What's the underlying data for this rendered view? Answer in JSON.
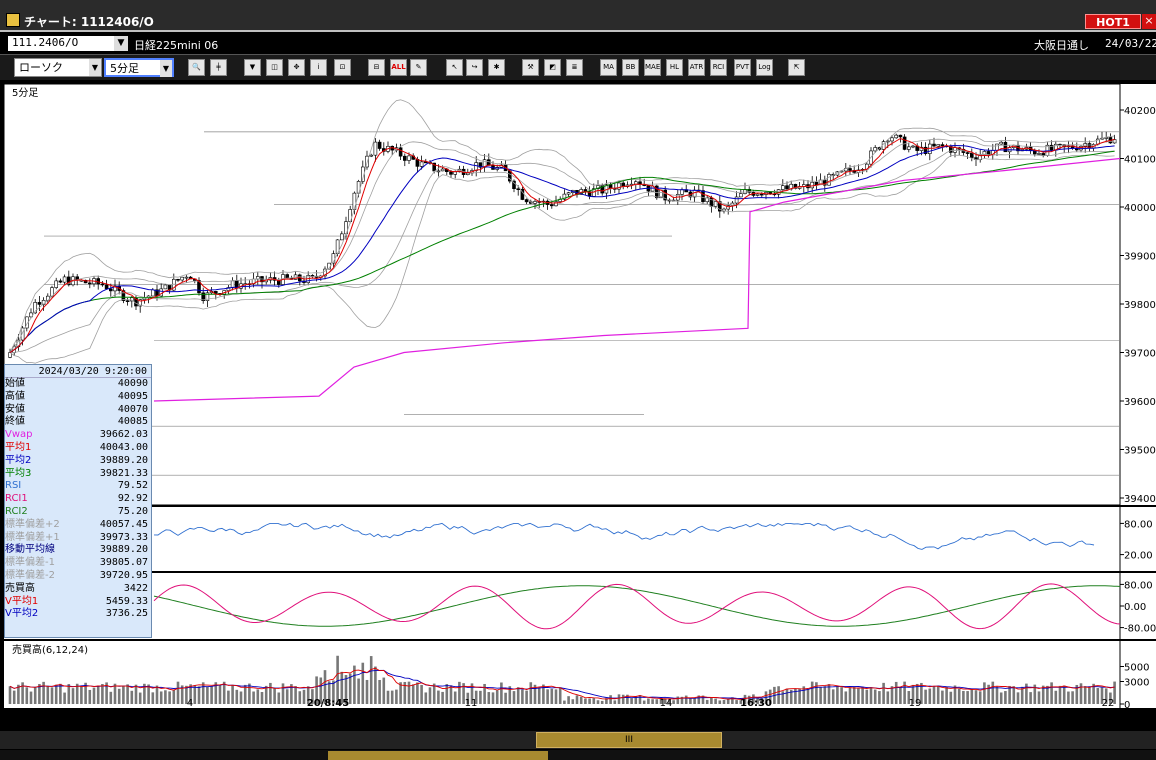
{
  "window": {
    "title": "チャート: 1112406/O",
    "hot_label": "HOT1",
    "close_glyph": "×"
  },
  "symbol_bar": {
    "symbol": "111.2406/O",
    "name": "日経225mini 06",
    "exchange": "大阪日通し",
    "date": "24/03/22"
  },
  "toolbar": {
    "chart_type": "ローソク",
    "interval": "5分足",
    "buttons": [
      "search-icon",
      "cursor-icon",
      "zoom-in-icon",
      "zoom-out-icon",
      "scroll-icon",
      "info-icon",
      "candle-icon",
      "candle2-icon",
      "ALL",
      "pen-icon",
      "arrow-icon",
      "move-icon",
      "settings-icon",
      "wrench-icon",
      "color-icon",
      "bar-icon",
      "MA",
      "BB",
      "MAE",
      "HL",
      "ATR",
      "RCI",
      "PVT",
      "Log",
      "export-icon"
    ],
    "ALL": "ALL",
    "MA": "MA",
    "BB": "BB",
    "MAE": "MAE",
    "HL": "HL",
    "ATR": "ATR",
    "RCI": "RCI",
    "PVT": "PVT",
    "Log": "Log"
  },
  "chart": {
    "interval_label": "5分足",
    "price_ticks": [
      "40200",
      "40100",
      "40000",
      "39900",
      "39800",
      "39700",
      "39600",
      "39500",
      "39400"
    ],
    "rsi_ticks": [
      "80.00",
      "20.00"
    ],
    "rci_ticks": [
      "80.00",
      "0.00",
      "-80.00"
    ],
    "volume_label": "売買高(6,12,24)",
    "volume_ticks": [
      "5000",
      "3000",
      "0"
    ],
    "date_labels": [
      "4",
      "20/8:45",
      "11",
      "14",
      "16:30",
      "19",
      "22"
    ],
    "colors": {
      "candle": "#000000",
      "ma1": "#e00000",
      "ma2": "#0000c0",
      "ma3": "#008000",
      "vwap": "#e020e0",
      "bands": "#a0a0a0",
      "rsi": "#3070d0",
      "rci1": "#e0107a",
      "rci2": "#208020"
    }
  },
  "info": {
    "timestamp": "2024/03/20 9:20:00",
    "rows": [
      {
        "k": "始値",
        "v": "40090",
        "c": "#000"
      },
      {
        "k": "高値",
        "v": "40095",
        "c": "#000"
      },
      {
        "k": "安値",
        "v": "40070",
        "c": "#000"
      },
      {
        "k": "終値",
        "v": "40085",
        "c": "#000"
      },
      {
        "k": "Vwap",
        "v": "39662.03",
        "c": "#e020e0"
      },
      {
        "k": "平均1",
        "v": "40043.00",
        "c": "#e00000"
      },
      {
        "k": "平均2",
        "v": "39889.20",
        "c": "#0000c0"
      },
      {
        "k": "平均3",
        "v": "39821.33",
        "c": "#008000"
      },
      {
        "k": "RSI",
        "v": "79.52",
        "c": "#3070d0"
      },
      {
        "k": "RCI1",
        "v": "92.92",
        "c": "#e0107a"
      },
      {
        "k": "RCI2",
        "v": "75.20",
        "c": "#208020"
      },
      {
        "k": "標準偏差+2",
        "v": "40057.45",
        "c": "#a0a0a0"
      },
      {
        "k": "標準偏差+1",
        "v": "39973.33",
        "c": "#a0a0a0"
      },
      {
        "k": "移動平均線",
        "v": "39889.20",
        "c": "#000080"
      },
      {
        "k": "標準偏差-1",
        "v": "39805.07",
        "c": "#a0a0a0"
      },
      {
        "k": "標準偏差-2",
        "v": "39720.95",
        "c": "#a0a0a0"
      },
      {
        "k": "売買高",
        "v": "3422",
        "c": "#000"
      },
      {
        "k": "V平均1",
        "v": "5459.33",
        "c": "#e00000"
      },
      {
        "k": "V平均2",
        "v": "3736.25",
        "c": "#0000c0"
      }
    ]
  },
  "scroll": {
    "thumb_glyph": "III"
  }
}
